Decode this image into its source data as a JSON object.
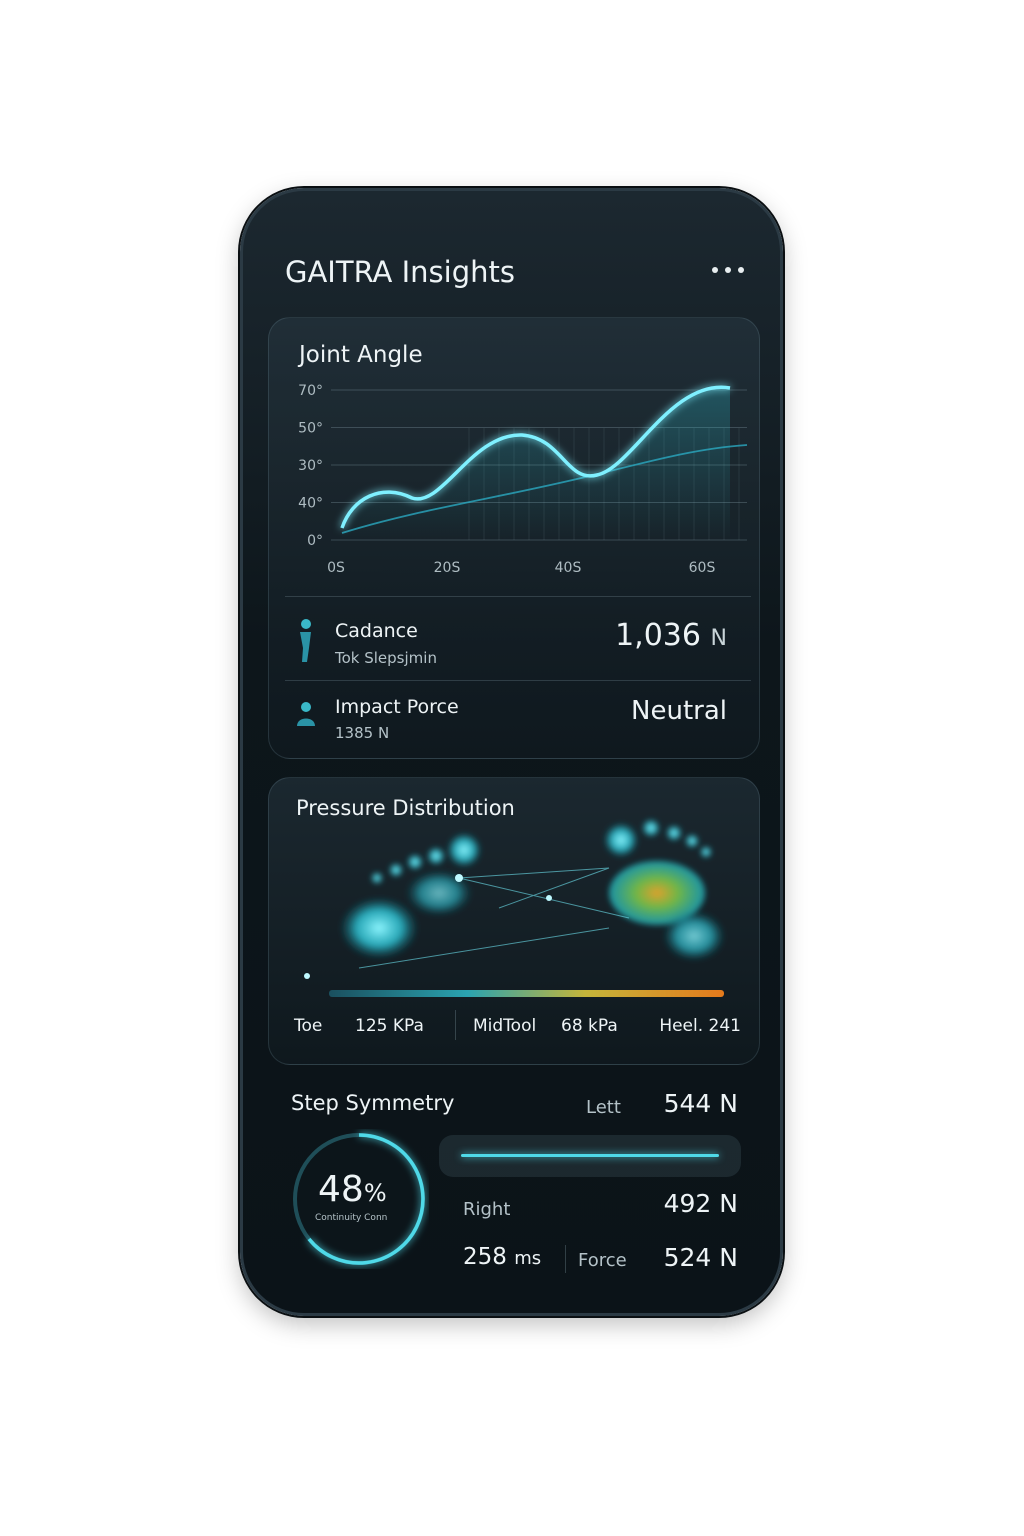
{
  "header": {
    "title": "GAITRA Insights"
  },
  "joint_angle": {
    "title": "Joint Angle",
    "y_labels": [
      "70°",
      "50°",
      "30°",
      "40°",
      "0°"
    ],
    "x_labels": [
      "0S",
      "20S",
      "40S",
      "60S"
    ]
  },
  "metrics": [
    {
      "label": "Cadance",
      "sub": "Tok Slepsjmin",
      "value": "1,036",
      "unit": "N"
    },
    {
      "label": "Impact Porce",
      "sub": "1385 N",
      "value": "Neutral"
    }
  ],
  "pressure": {
    "title": "Pressure Distribution",
    "legend": [
      "Toe",
      "125 KPa",
      "MidTool",
      "68 kPa",
      "Heel. 241"
    ]
  },
  "symmetry": {
    "title": "Step Symmetry",
    "percent": "48",
    "percent_unit": "%",
    "caption": "Continuity Conn",
    "left_label": "Lett",
    "left_value": "544",
    "left_unit": "N",
    "right_label": "Right",
    "right_value": "492",
    "right_unit": "N",
    "time_value": "258",
    "time_unit": "ms",
    "force_label": "Force",
    "force_value": "524",
    "force_unit": "N"
  }
}
